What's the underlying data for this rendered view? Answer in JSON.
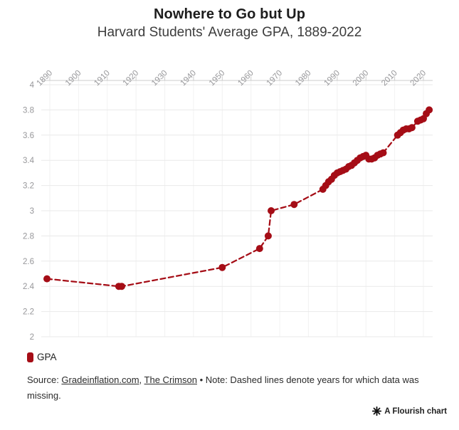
{
  "header": {
    "title": "Nowhere to Go but Up",
    "subtitle": "Harvard Students' Average GPA, 1889-2022"
  },
  "chart_data": {
    "type": "line",
    "title": "Nowhere to Go but Up",
    "subtitle": "Harvard Students' Average GPA, 1889-2022",
    "xlabel": "",
    "ylabel": "",
    "xlim": [
      1887,
      2023
    ],
    "ylim": [
      2,
      4
    ],
    "x_ticks": [
      1890,
      1900,
      1910,
      1920,
      1930,
      1940,
      1950,
      1960,
      1970,
      1980,
      1990,
      2000,
      2010,
      2020
    ],
    "y_ticks": [
      4,
      3.8,
      3.6,
      3.4,
      3.2,
      3,
      2.8,
      2.6,
      2.4,
      2.2,
      2
    ],
    "grid": "on",
    "line_style": "dashed",
    "note": "Dashed lines denote years for which data was missing",
    "series": [
      {
        "name": "GPA",
        "points": [
          [
            1889,
            2.46
          ],
          [
            1914,
            2.4
          ],
          [
            1915,
            2.4
          ],
          [
            1950,
            2.55
          ],
          [
            1963,
            2.7
          ],
          [
            1966,
            2.8
          ],
          [
            1967,
            3.0
          ],
          [
            1975,
            3.05
          ],
          [
            1985,
            3.17
          ],
          [
            1986,
            3.2
          ],
          [
            1987,
            3.23
          ],
          [
            1988,
            3.25
          ],
          [
            1989,
            3.28
          ],
          [
            1990,
            3.3
          ],
          [
            1991,
            3.31
          ],
          [
            1992,
            3.32
          ],
          [
            1993,
            3.33
          ],
          [
            1994,
            3.35
          ],
          [
            1995,
            3.36
          ],
          [
            1996,
            3.38
          ],
          [
            1997,
            3.4
          ],
          [
            1998,
            3.42
          ],
          [
            1999,
            3.43
          ],
          [
            2000,
            3.44
          ],
          [
            2001,
            3.41
          ],
          [
            2002,
            3.41
          ],
          [
            2003,
            3.42
          ],
          [
            2004,
            3.44
          ],
          [
            2005,
            3.45
          ],
          [
            2006,
            3.46
          ],
          [
            2011,
            3.6
          ],
          [
            2012,
            3.62
          ],
          [
            2013,
            3.64
          ],
          [
            2014,
            3.65
          ],
          [
            2015,
            3.65
          ],
          [
            2016,
            3.66
          ],
          [
            2018,
            3.71
          ],
          [
            2019,
            3.72
          ],
          [
            2020,
            3.73
          ],
          [
            2021,
            3.77
          ],
          [
            2022,
            3.8
          ]
        ]
      }
    ],
    "colors": {
      "series": "#a50d16",
      "grid_h": "#e9e9e9",
      "grid_v": "#f2f2f2",
      "axis": "#cccccc",
      "tick_label": "#97979a"
    }
  },
  "legend": {
    "items": [
      {
        "label": "GPA",
        "color": "#a50d16"
      }
    ]
  },
  "footer": {
    "source_prefix": "Source: ",
    "link1": "Gradeinflation.com",
    "sep": ", ",
    "link2": "The Crimson",
    "note": " • Note: Dashed lines denote years for which data was missing.",
    "flourish": "A Flourish chart"
  }
}
